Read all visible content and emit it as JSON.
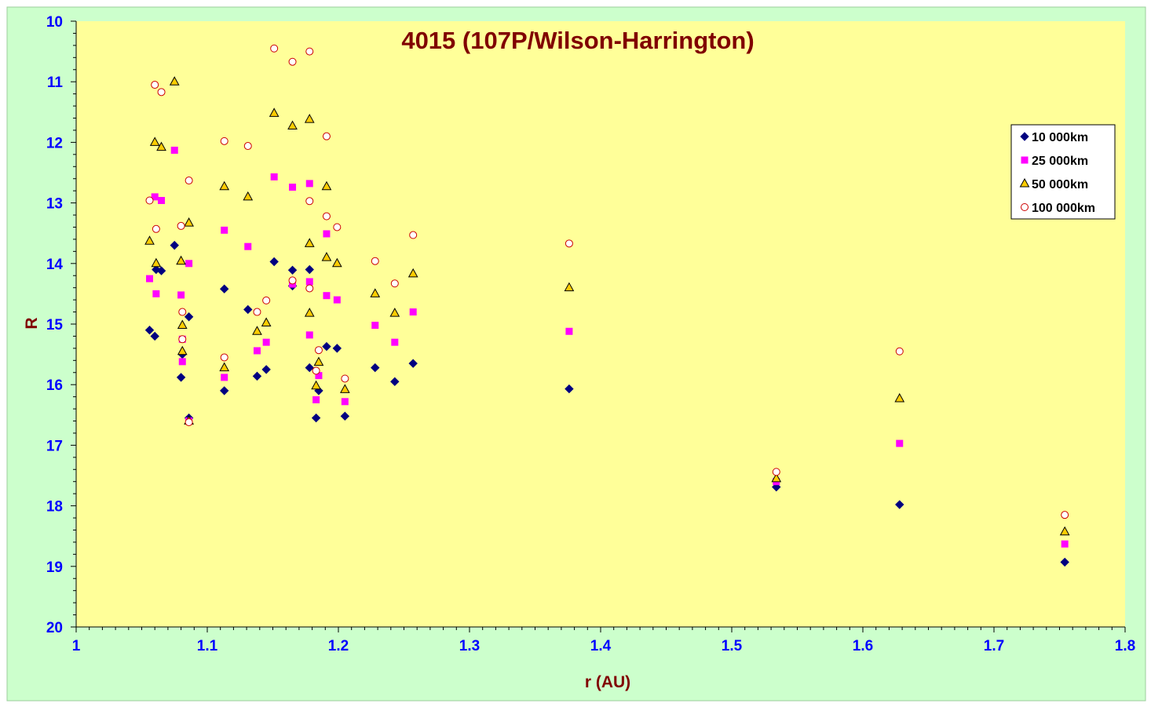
{
  "chart_data": {
    "type": "scatter",
    "title": "4015 (107P/Wilson-Harrington)",
    "xlabel": "r (AU)",
    "ylabel": "R",
    "xlim": [
      1,
      1.8
    ],
    "ylim": [
      10,
      20
    ],
    "y_reversed": true,
    "x_ticks": [
      "1",
      "1.1",
      "1.2",
      "1.3",
      "1.4",
      "1.5",
      "1.6",
      "1.7",
      "1.8"
    ],
    "y_ticks": [
      "10",
      "11",
      "12",
      "13",
      "14",
      "15",
      "16",
      "17",
      "18",
      "19",
      "20"
    ],
    "grid": false,
    "legend_position": "right",
    "colors": {
      "outer_background": "#ccffcc",
      "plot_background": "#ffff99",
      "title": "#800000",
      "axis_title": "#800000",
      "tick_labels": "#0000ff"
    },
    "series": [
      {
        "name": "10 000km",
        "marker": "diamond",
        "color": "#000080",
        "points": [
          [
            1.056,
            15.1
          ],
          [
            1.06,
            15.2
          ],
          [
            1.061,
            14.1
          ],
          [
            1.065,
            14.12
          ],
          [
            1.075,
            13.7
          ],
          [
            1.08,
            15.88
          ],
          [
            1.081,
            15.5
          ],
          [
            1.086,
            14.88
          ],
          [
            1.086,
            16.55
          ],
          [
            1.113,
            14.42
          ],
          [
            1.113,
            16.1
          ],
          [
            1.131,
            14.76
          ],
          [
            1.138,
            15.86
          ],
          [
            1.145,
            15.75
          ],
          [
            1.151,
            13.97
          ],
          [
            1.165,
            14.11
          ],
          [
            1.165,
            14.37
          ],
          [
            1.178,
            14.1
          ],
          [
            1.178,
            15.72
          ],
          [
            1.183,
            16.55
          ],
          [
            1.185,
            16.1
          ],
          [
            1.191,
            15.37
          ],
          [
            1.199,
            15.4
          ],
          [
            1.205,
            16.52
          ],
          [
            1.228,
            15.72
          ],
          [
            1.243,
            15.95
          ],
          [
            1.257,
            15.65
          ],
          [
            1.376,
            16.07
          ],
          [
            1.534,
            17.69
          ],
          [
            1.628,
            17.98
          ],
          [
            1.754,
            18.93
          ]
        ]
      },
      {
        "name": "25 000km",
        "marker": "square",
        "color": "#ff00ff",
        "points": [
          [
            1.056,
            14.25
          ],
          [
            1.06,
            12.9
          ],
          [
            1.061,
            14.5
          ],
          [
            1.065,
            12.96
          ],
          [
            1.075,
            12.13
          ],
          [
            1.08,
            14.52
          ],
          [
            1.081,
            15.62
          ],
          [
            1.081,
            15.25
          ],
          [
            1.086,
            14.0
          ],
          [
            1.086,
            16.6
          ],
          [
            1.113,
            13.45
          ],
          [
            1.113,
            15.88
          ],
          [
            1.131,
            13.72
          ],
          [
            1.138,
            15.44
          ],
          [
            1.145,
            15.3
          ],
          [
            1.151,
            12.57
          ],
          [
            1.165,
            12.74
          ],
          [
            1.165,
            14.34
          ],
          [
            1.178,
            12.68
          ],
          [
            1.178,
            14.3
          ],
          [
            1.178,
            15.18
          ],
          [
            1.183,
            16.25
          ],
          [
            1.185,
            15.85
          ],
          [
            1.191,
            13.51
          ],
          [
            1.191,
            14.53
          ],
          [
            1.199,
            14.6
          ],
          [
            1.205,
            16.28
          ],
          [
            1.228,
            15.02
          ],
          [
            1.243,
            15.3
          ],
          [
            1.257,
            14.8
          ],
          [
            1.376,
            15.12
          ],
          [
            1.534,
            17.6
          ],
          [
            1.628,
            16.97
          ],
          [
            1.754,
            18.63
          ]
        ]
      },
      {
        "name": "50 000km",
        "marker": "triangle",
        "color": "#ffcc00",
        "points": [
          [
            1.056,
            13.63
          ],
          [
            1.06,
            12.0
          ],
          [
            1.061,
            14.0
          ],
          [
            1.065,
            12.08
          ],
          [
            1.075,
            11.0
          ],
          [
            1.08,
            13.96
          ],
          [
            1.081,
            15.02
          ],
          [
            1.081,
            15.45
          ],
          [
            1.086,
            13.33
          ],
          [
            1.086,
            16.6
          ],
          [
            1.113,
            12.73
          ],
          [
            1.113,
            15.72
          ],
          [
            1.131,
            12.9
          ],
          [
            1.138,
            15.12
          ],
          [
            1.145,
            14.98
          ],
          [
            1.151,
            11.52
          ],
          [
            1.165,
            11.73
          ],
          [
            1.178,
            11.62
          ],
          [
            1.178,
            13.67
          ],
          [
            1.178,
            14.82
          ],
          [
            1.183,
            16.02
          ],
          [
            1.185,
            15.63
          ],
          [
            1.191,
            12.73
          ],
          [
            1.191,
            13.9
          ],
          [
            1.199,
            14.0
          ],
          [
            1.205,
            16.08
          ],
          [
            1.228,
            14.5
          ],
          [
            1.243,
            14.82
          ],
          [
            1.257,
            14.17
          ],
          [
            1.376,
            14.4
          ],
          [
            1.534,
            17.55
          ],
          [
            1.628,
            16.23
          ],
          [
            1.754,
            18.43
          ]
        ]
      },
      {
        "name": "100 000km",
        "marker": "circle",
        "color": "#cc0000",
        "points": [
          [
            1.056,
            12.96
          ],
          [
            1.06,
            11.05
          ],
          [
            1.061,
            13.43
          ],
          [
            1.065,
            11.17
          ],
          [
            1.08,
            13.38
          ],
          [
            1.081,
            14.8
          ],
          [
            1.081,
            15.25
          ],
          [
            1.086,
            12.63
          ],
          [
            1.086,
            16.62
          ],
          [
            1.113,
            11.98
          ],
          [
            1.113,
            15.55
          ],
          [
            1.131,
            12.06
          ],
          [
            1.138,
            14.8
          ],
          [
            1.145,
            14.61
          ],
          [
            1.151,
            10.45
          ],
          [
            1.165,
            10.67
          ],
          [
            1.165,
            14.28
          ],
          [
            1.178,
            10.5
          ],
          [
            1.178,
            12.97
          ],
          [
            1.178,
            14.41
          ],
          [
            1.183,
            15.77
          ],
          [
            1.185,
            15.43
          ],
          [
            1.191,
            11.9
          ],
          [
            1.191,
            13.22
          ],
          [
            1.199,
            13.4
          ],
          [
            1.205,
            15.9
          ],
          [
            1.228,
            13.96
          ],
          [
            1.243,
            14.33
          ],
          [
            1.257,
            13.53
          ],
          [
            1.376,
            13.67
          ],
          [
            1.534,
            17.44
          ],
          [
            1.628,
            15.45
          ],
          [
            1.754,
            18.15
          ]
        ]
      }
    ]
  }
}
